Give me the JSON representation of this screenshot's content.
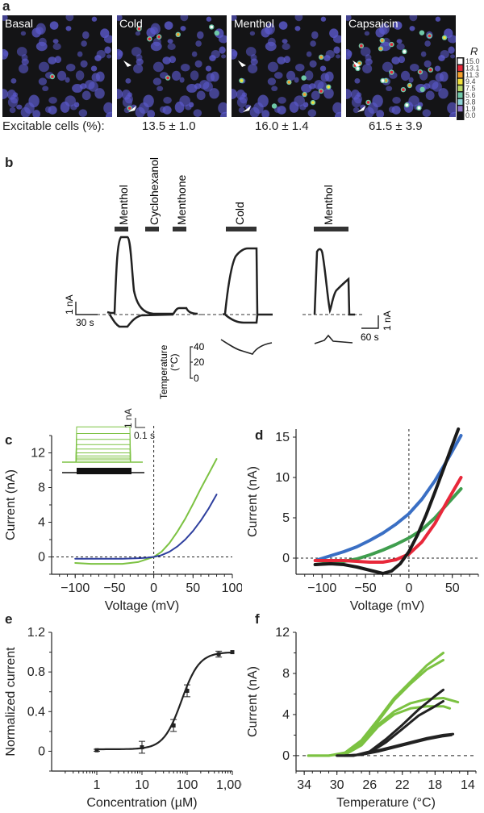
{
  "panel_a": {
    "label": "a",
    "images": [
      {
        "title": "Basal",
        "hot_spots": 1
      },
      {
        "title": "Cold",
        "hot_spots": 8
      },
      {
        "title": "Menthol",
        "hot_spots": 9
      },
      {
        "title": "Capsaicin",
        "hot_spots": 22
      }
    ],
    "stats_label": "Excitable cells (%):",
    "stats": [
      "13.5 ± 1.0",
      "16.0 ± 1.4",
      "61.5 ± 3.9"
    ],
    "colorbar": {
      "title": "R",
      "ticks": [
        "15.0",
        "13.1",
        "11.3",
        "9.4",
        "7.5",
        "5.6",
        "3.8",
        "1.9",
        "0.0"
      ],
      "colors": [
        "#ffffff",
        "#e8283a",
        "#f5a02a",
        "#f2e23a",
        "#b7d766",
        "#6fc8a8",
        "#8fd4d8",
        "#8c73c8",
        "#141416"
      ]
    }
  },
  "panel_b": {
    "label": "b",
    "stimuli": [
      "Menthol",
      "Cyclohexanol",
      "Menthone",
      "Cold",
      "Menthol"
    ],
    "scale_left": {
      "current": "1 nA",
      "time": "30 s"
    },
    "scale_right": {
      "current": "1 nA",
      "time": "60 s"
    },
    "temperature_axis": {
      "label": "Temperature",
      "unit": "(°C)",
      "ticks": [
        "40",
        "20",
        "0"
      ]
    }
  },
  "chart_data": [
    {
      "id": "c",
      "type": "line",
      "label": "c",
      "xlabel": "Voltage (mV)",
      "ylabel": "Current (nA)",
      "xlim": [
        -130,
        100
      ],
      "ylim": [
        -2,
        14
      ],
      "xticks": [
        -100,
        -50,
        0,
        50,
        100
      ],
      "xtick_labels": [
        "−100",
        "−50",
        "0",
        "50",
        "100"
      ],
      "yticks": [
        0,
        4,
        8,
        12
      ],
      "inset_scale": {
        "current": "1 nA",
        "time": "0.1 s"
      },
      "series": [
        {
          "name": "green",
          "color": "#7cc242",
          "x": [
            -100,
            -80,
            -60,
            -40,
            -20,
            -10,
            0,
            10,
            20,
            30,
            40,
            50,
            60,
            70,
            80
          ],
          "y": [
            -0.7,
            -0.8,
            -0.8,
            -0.8,
            -0.6,
            -0.3,
            0,
            0.6,
            1.6,
            2.9,
            4.4,
            6.1,
            7.9,
            9.6,
            11.3
          ]
        },
        {
          "name": "blue",
          "color": "#2e3f9e",
          "x": [
            -100,
            -80,
            -60,
            -40,
            -20,
            -10,
            0,
            10,
            20,
            30,
            40,
            50,
            60,
            70,
            80
          ],
          "y": [
            -0.2,
            -0.2,
            -0.2,
            -0.2,
            -0.15,
            -0.1,
            0,
            0.2,
            0.6,
            1.2,
            2.0,
            3.0,
            4.2,
            5.6,
            7.2
          ]
        }
      ]
    },
    {
      "id": "d",
      "type": "line",
      "label": "d",
      "xlabel": "Voltage (mV)",
      "ylabel": "Current (nA)",
      "xlim": [
        -130,
        80
      ],
      "ylim": [
        -2,
        16
      ],
      "xticks": [
        -100,
        -50,
        0,
        50
      ],
      "xtick_labels": [
        "−100",
        "−50",
        "0",
        "50"
      ],
      "yticks": [
        0,
        5,
        10,
        15
      ],
      "series": [
        {
          "name": "blue",
          "color": "#3a6fc4",
          "x": [
            -105,
            -90,
            -75,
            -60,
            -45,
            -30,
            -15,
            0,
            15,
            30,
            45,
            60
          ],
          "y": [
            -0.2,
            0.3,
            0.8,
            1.4,
            2.2,
            3.1,
            4.2,
            5.5,
            7.3,
            9.6,
            12.3,
            15.2
          ]
        },
        {
          "name": "green",
          "color": "#3f9e4e",
          "x": [
            -108,
            -90,
            -75,
            -60,
            -45,
            -30,
            -15,
            0,
            15,
            30,
            45,
            60
          ],
          "y": [
            -0.8,
            -0.6,
            -0.4,
            -0.1,
            0.4,
            1.0,
            1.7,
            2.5,
            3.5,
            5.0,
            6.8,
            8.6
          ]
        },
        {
          "name": "red",
          "color": "#e8283a",
          "x": [
            -108,
            -90,
            -75,
            -60,
            -45,
            -30,
            -15,
            0,
            15,
            30,
            45,
            60
          ],
          "y": [
            -0.3,
            -0.3,
            -0.3,
            -0.4,
            -0.5,
            -0.5,
            -0.2,
            0.5,
            2.0,
            4.3,
            7.2,
            10.0
          ]
        },
        {
          "name": "black",
          "color": "#1a1a1a",
          "x": [
            -108,
            -90,
            -75,
            -60,
            -45,
            -30,
            -20,
            -10,
            0,
            10,
            20,
            30,
            40,
            50,
            57
          ],
          "y": [
            -0.8,
            -0.7,
            -0.8,
            -1.1,
            -1.5,
            -1.9,
            -1.6,
            -0.7,
            0.8,
            2.9,
            5.4,
            8.2,
            11.1,
            14.0,
            16.0
          ]
        }
      ]
    },
    {
      "id": "e",
      "type": "line",
      "label": "e",
      "xlabel": "Concentration (µM)",
      "ylabel": "Normalized current",
      "xscale": "log",
      "xlim": [
        0.1,
        1000
      ],
      "ylim": [
        -0.2,
        1.2
      ],
      "xticks": [
        1,
        10,
        100,
        1000
      ],
      "xtick_labels": [
        "1",
        "10",
        "100",
        "1,000"
      ],
      "yticks": [
        0,
        0.4,
        0.8,
        1.2
      ],
      "ytick_labels": [
        "0",
        "0.4",
        "0.8",
        "1.2"
      ],
      "fit": {
        "ec50": 75,
        "hill": 2.2,
        "bottom": 0.02,
        "top": 1.0
      },
      "points": [
        {
          "x": 1,
          "y": 0.01,
          "err": 0.01
        },
        {
          "x": 10,
          "y": 0.04,
          "err": 0.06
        },
        {
          "x": 50,
          "y": 0.26,
          "err": 0.06
        },
        {
          "x": 100,
          "y": 0.61,
          "err": 0.06
        },
        {
          "x": 500,
          "y": 0.98,
          "err": 0.03
        },
        {
          "x": 1000,
          "y": 1.0,
          "err": 0.0
        }
      ]
    },
    {
      "id": "f",
      "type": "line",
      "label": "f",
      "xlabel": "Temperature (°C)",
      "ylabel": "Current (nA)",
      "xlim": [
        35,
        13
      ],
      "ylim": [
        -1.5,
        12
      ],
      "xticks": [
        34,
        30,
        26,
        22,
        18,
        14
      ],
      "yticks": [
        0,
        4,
        8,
        12
      ],
      "series": [
        {
          "name": "green-1",
          "color": "#7cc242",
          "x": [
            33.5,
            31,
            29,
            27,
            25,
            23,
            21,
            19,
            17
          ],
          "y": [
            0,
            0,
            0.3,
            1.5,
            3.5,
            5.6,
            7.2,
            8.8,
            10.0
          ]
        },
        {
          "name": "green-2",
          "color": "#7cc242",
          "x": [
            33.5,
            31,
            29,
            27,
            25,
            23,
            21,
            19,
            17
          ],
          "y": [
            0,
            0,
            0.2,
            1.3,
            3.3,
            5.4,
            7.0,
            8.4,
            9.3
          ]
        },
        {
          "name": "green-3",
          "color": "#7cc242",
          "x": [
            29,
            27,
            25,
            23,
            21,
            19,
            17,
            15.2
          ],
          "y": [
            0.2,
            1.2,
            3.0,
            4.3,
            5.1,
            5.5,
            5.6,
            5.2
          ]
        },
        {
          "name": "green-4",
          "color": "#7cc242",
          "x": [
            29,
            27,
            25,
            23,
            21,
            19,
            17,
            16.2
          ],
          "y": [
            0.1,
            1.0,
            2.8,
            4.0,
            4.6,
            4.8,
            4.8,
            4.6
          ]
        },
        {
          "name": "black-1",
          "color": "#222222",
          "x": [
            30,
            28,
            26,
            24,
            22,
            20,
            18,
            17
          ],
          "y": [
            0,
            0,
            0.4,
            1.6,
            3.0,
            4.5,
            5.8,
            6.4
          ]
        },
        {
          "name": "black-2",
          "color": "#222222",
          "x": [
            30,
            28,
            26,
            24,
            22,
            20,
            18,
            17
          ],
          "y": [
            0,
            0,
            0.3,
            1.3,
            2.6,
            3.9,
            4.8,
            5.3
          ]
        },
        {
          "name": "black-3",
          "color": "#222222",
          "x": [
            29,
            27,
            25,
            23,
            21,
            19,
            17,
            15.8
          ],
          "y": [
            0,
            0.1,
            0.5,
            0.9,
            1.3,
            1.7,
            2.0,
            2.1
          ]
        },
        {
          "name": "black-4",
          "color": "#222222",
          "x": [
            29,
            27,
            25,
            23,
            21,
            19,
            17,
            16
          ],
          "y": [
            0,
            0.1,
            0.4,
            0.8,
            1.2,
            1.6,
            1.9,
            2.0
          ]
        }
      ]
    }
  ]
}
